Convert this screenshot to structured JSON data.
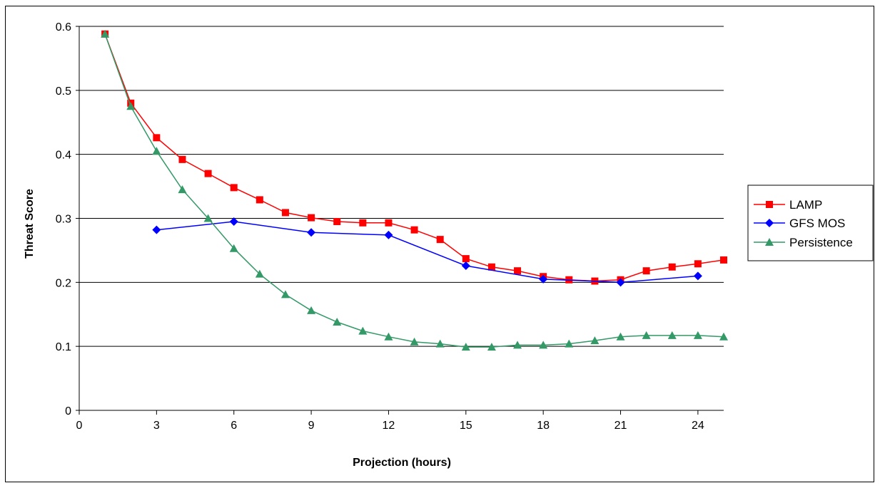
{
  "chart_data": {
    "type": "line",
    "xlabel": "Projection (hours)",
    "ylabel": "Threat Score",
    "xlim": [
      0,
      25
    ],
    "ylim": [
      0,
      0.6
    ],
    "xticks": [
      0,
      3,
      6,
      9,
      12,
      15,
      18,
      21,
      24
    ],
    "yticks": [
      0,
      0.1,
      0.2,
      0.3,
      0.4,
      0.5,
      0.6
    ],
    "ytick_labels": [
      "0",
      "0.1",
      "0.2",
      "0.3",
      "0.4",
      "0.5",
      "0.6"
    ],
    "grid": "horizontal",
    "legend_position": "right",
    "series": [
      {
        "name": "LAMP",
        "color": "#ff0000",
        "marker": "square",
        "x": [
          1,
          2,
          3,
          4,
          5,
          6,
          7,
          8,
          9,
          10,
          11,
          12,
          13,
          14,
          15,
          16,
          17,
          18,
          19,
          20,
          21,
          22,
          23,
          24,
          25
        ],
        "y": [
          0.588,
          0.48,
          0.426,
          0.392,
          0.37,
          0.348,
          0.329,
          0.309,
          0.301,
          0.295,
          0.293,
          0.293,
          0.282,
          0.267,
          0.237,
          0.224,
          0.218,
          0.209,
          0.204,
          0.202,
          0.204,
          0.218,
          0.224,
          0.229,
          0.235
        ]
      },
      {
        "name": "GFS MOS",
        "color": "#0000ff",
        "marker": "diamond",
        "x": [
          3,
          6,
          9,
          12,
          15,
          18,
          21,
          24
        ],
        "y": [
          0.282,
          0.295,
          0.278,
          0.274,
          0.226,
          0.205,
          0.2,
          0.21
        ]
      },
      {
        "name": "Persistence",
        "color": "#339966",
        "marker": "triangle",
        "x": [
          1,
          2,
          3,
          4,
          5,
          6,
          7,
          8,
          9,
          10,
          11,
          12,
          13,
          14,
          15,
          16,
          17,
          18,
          19,
          20,
          21,
          22,
          23,
          24,
          25
        ],
        "y": [
          0.588,
          0.475,
          0.405,
          0.345,
          0.3,
          0.253,
          0.213,
          0.181,
          0.156,
          0.138,
          0.124,
          0.115,
          0.107,
          0.104,
          0.099,
          0.099,
          0.102,
          0.102,
          0.104,
          0.109,
          0.115,
          0.117,
          0.117,
          0.117,
          0.115
        ]
      }
    ]
  }
}
